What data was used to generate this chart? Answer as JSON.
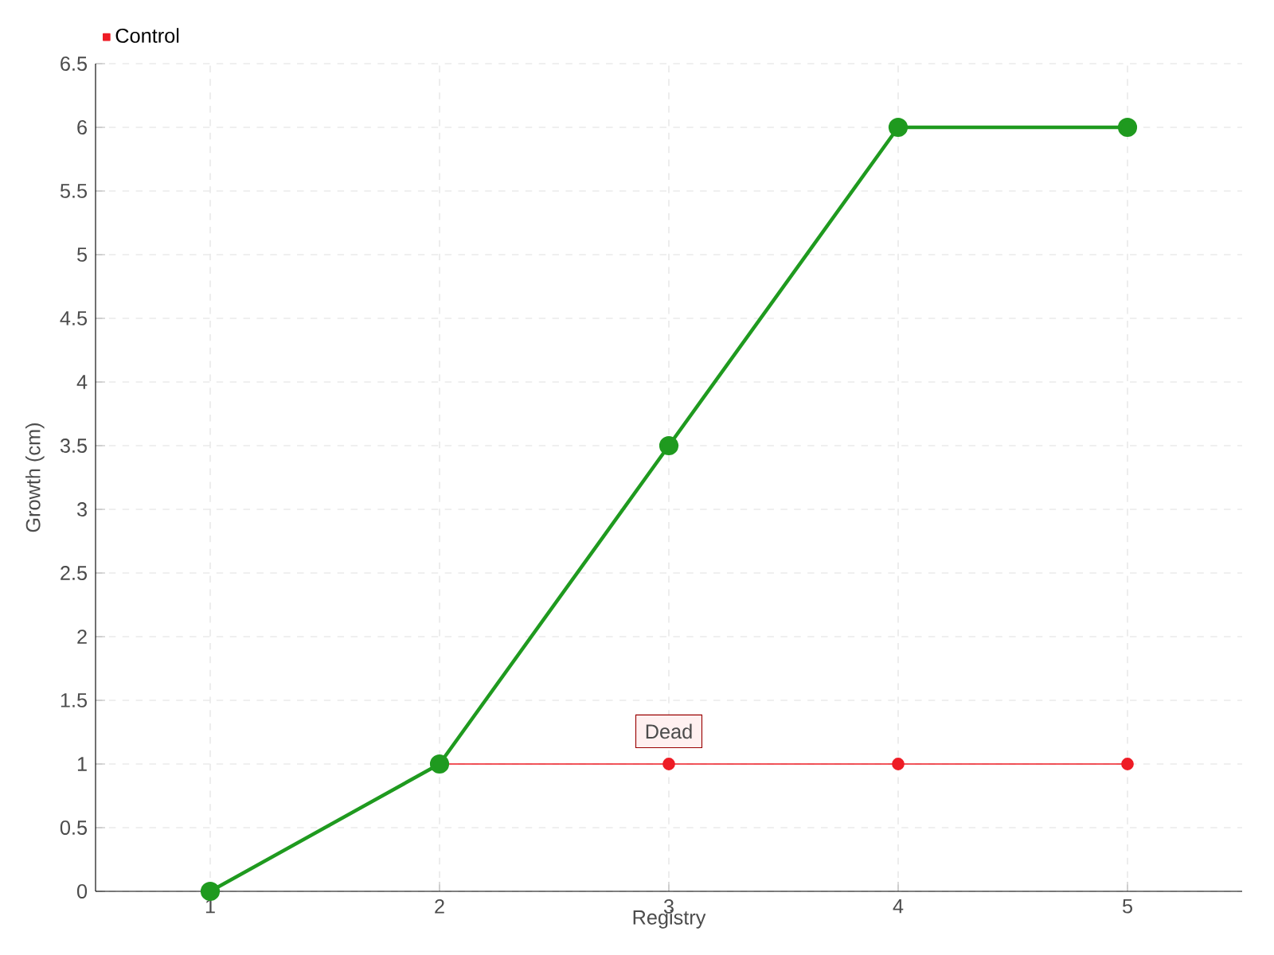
{
  "chart_data": {
    "type": "line",
    "xlabel": "Registry",
    "ylabel": "Growth (cm)",
    "categories": [
      "1",
      "2",
      "3",
      "4",
      "5"
    ],
    "series": [
      {
        "color": "#1f9a1f",
        "values": [
          0,
          1,
          3.5,
          6,
          6
        ]
      },
      {
        "name": "Control",
        "color": "#ee1c25",
        "values": [
          0,
          1,
          1,
          1,
          1
        ]
      }
    ],
    "ylim": [
      0,
      6.5
    ],
    "yticks": [
      0,
      0.5,
      1,
      1.5,
      2,
      2.5,
      3,
      3.5,
      4,
      4.5,
      5,
      5.5,
      6,
      6.5
    ],
    "grid": true,
    "legend": "top left",
    "marker": "circle",
    "line_style": "solid",
    "annotations": [
      {
        "text": "Dead",
        "x": "3",
        "y": 1
      }
    ]
  }
}
